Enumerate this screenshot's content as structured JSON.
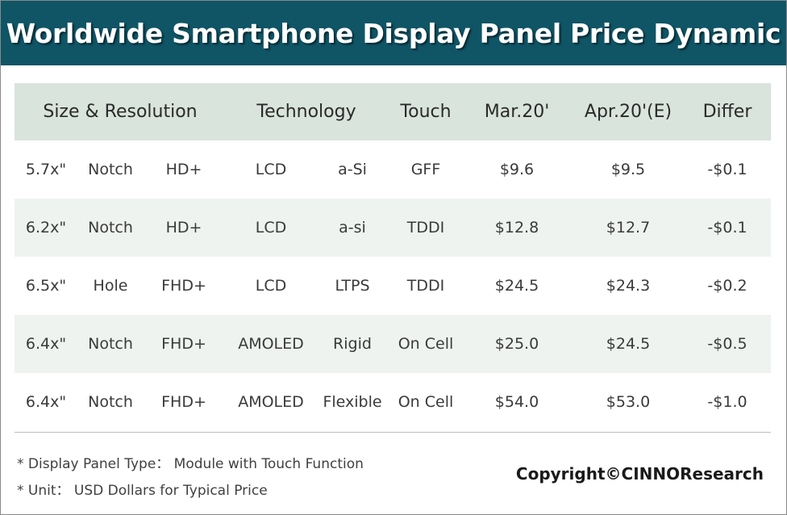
{
  "title": "Worldwide Smartphone Display Panel Price Dynamic",
  "headers": {
    "size_resolution": "Size & Resolution",
    "technology": "Technology",
    "touch": "Touch",
    "mar": "Mar.20'",
    "apr": "Apr.20'(E)",
    "differ": "Differ"
  },
  "rows": [
    {
      "size": "5.7x\"",
      "shape": "Notch",
      "res": "HD+",
      "tech": "LCD",
      "sub": "a-Si",
      "touch": "GFF",
      "mar": "$9.6",
      "apr": "$9.5",
      "differ": "-$0.1"
    },
    {
      "size": "6.2x\"",
      "shape": "Notch",
      "res": "HD+",
      "tech": "LCD",
      "sub": "a-si",
      "touch": "TDDI",
      "mar": "$12.8",
      "apr": "$12.7",
      "differ": "-$0.1"
    },
    {
      "size": "6.5x\"",
      "shape": "Hole",
      "res": "FHD+",
      "tech": "LCD",
      "sub": "LTPS",
      "touch": "TDDI",
      "mar": "$24.5",
      "apr": "$24.3",
      "differ": "-$0.2"
    },
    {
      "size": "6.4x\"",
      "shape": "Notch",
      "res": "FHD+",
      "tech": "AMOLED",
      "sub": "Rigid",
      "touch": "On Cell",
      "mar": "$25.0",
      "apr": "$24.5",
      "differ": "-$0.5"
    },
    {
      "size": "6.4x\"",
      "shape": "Notch",
      "res": "FHD+",
      "tech": "AMOLED",
      "sub": "Flexible",
      "touch": "On Cell",
      "mar": "$54.0",
      "apr": "$53.0",
      "differ": "-$1.0"
    }
  ],
  "notes": {
    "panel_type": "* Display Panel Type： Module with Touch Function",
    "unit": "* Unit： USD Dollars for Typical Price"
  },
  "copyright": "Copyright©CINNOResearch",
  "colors": {
    "title_bg": "#0f5566",
    "header_bg": "#d8e4dc",
    "alt_row_bg": "#eef3ef"
  }
}
